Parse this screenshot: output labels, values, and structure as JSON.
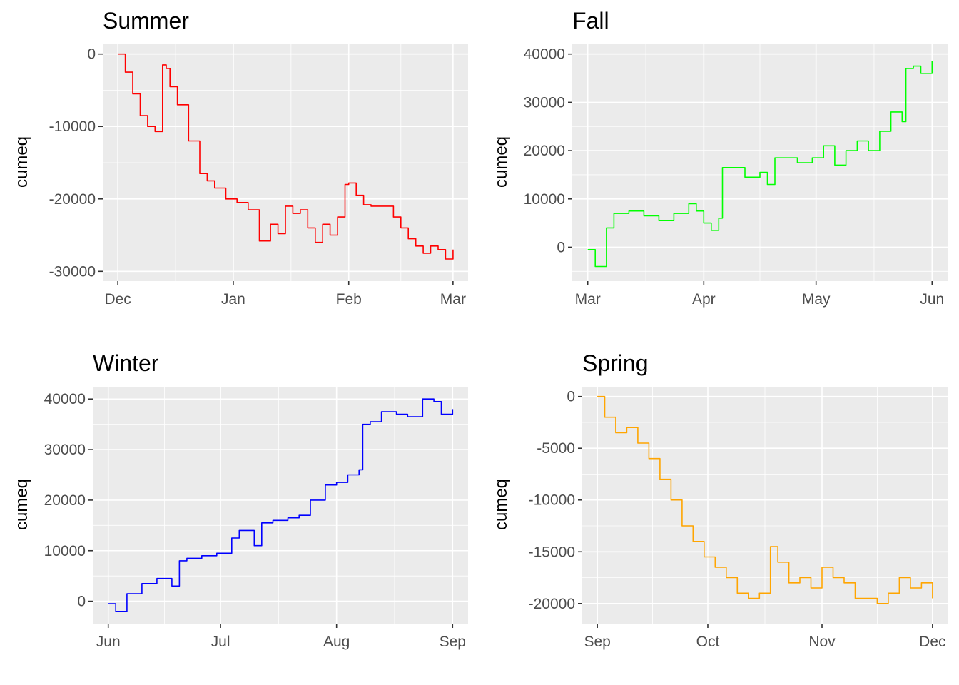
{
  "chart_data": [
    {
      "type": "line",
      "title": "Summer",
      "xlabel": "",
      "ylabel": "cumeq",
      "x_ticks": [
        "Dec",
        "Jan",
        "Feb",
        "Mar"
      ],
      "y_ticks": [
        0,
        -10000,
        -20000,
        -30000
      ],
      "y_tick_labels": [
        "0",
        "-10000",
        "-20000",
        "-30000"
      ],
      "xlim": [
        "2020-12-01",
        "2021-03-01"
      ],
      "ylim": [
        -30000,
        0
      ],
      "grid": true,
      "series": [
        {
          "color": "#ff0000",
          "x": [
            "2020-12-01",
            "2020-12-03",
            "2020-12-05",
            "2020-12-07",
            "2020-12-09",
            "2020-12-11",
            "2020-12-13",
            "2020-12-14",
            "2020-12-15",
            "2020-12-17",
            "2020-12-20",
            "2020-12-23",
            "2020-12-25",
            "2020-12-27",
            "2020-12-30",
            "2021-01-02",
            "2021-01-05",
            "2021-01-08",
            "2021-01-11",
            "2021-01-13",
            "2021-01-15",
            "2021-01-17",
            "2021-01-19",
            "2021-01-21",
            "2021-01-23",
            "2021-01-25",
            "2021-01-27",
            "2021-01-29",
            "2021-01-31",
            "2021-02-01",
            "2021-02-03",
            "2021-02-05",
            "2021-02-07",
            "2021-02-10",
            "2021-02-13",
            "2021-02-15",
            "2021-02-17",
            "2021-02-19",
            "2021-02-21",
            "2021-02-23",
            "2021-02-25",
            "2021-02-27",
            "2021-03-01"
          ],
          "values": [
            0,
            -2500,
            -5500,
            -8500,
            -10000,
            -10700,
            -1500,
            -2000,
            -4500,
            -7000,
            -12000,
            -16500,
            -17500,
            -18500,
            -20000,
            -20500,
            -21500,
            -25800,
            -23500,
            -24800,
            -21000,
            -22000,
            -21500,
            -24000,
            -26000,
            -23500,
            -25000,
            -22500,
            -18000,
            -17800,
            -19500,
            -20800,
            -21000,
            -21000,
            -22500,
            -24000,
            -25500,
            -26500,
            -27500,
            -26500,
            -27000,
            -28300,
            -27000
          ]
        }
      ]
    },
    {
      "type": "line",
      "title": "Fall",
      "xlabel": "",
      "ylabel": "cumeq",
      "x_ticks": [
        "Mar",
        "Apr",
        "May",
        "Jun"
      ],
      "y_ticks": [
        40000,
        30000,
        20000,
        10000,
        0
      ],
      "y_tick_labels": [
        "40000",
        "30000",
        "20000",
        "10000",
        "0"
      ],
      "xlim": [
        "2021-03-01",
        "2021-06-01"
      ],
      "ylim": [
        -5000,
        40000
      ],
      "grid": true,
      "series": [
        {
          "color": "#00ff00",
          "x": [
            "2021-03-01",
            "2021-03-03",
            "2021-03-05",
            "2021-03-06",
            "2021-03-08",
            "2021-03-12",
            "2021-03-16",
            "2021-03-20",
            "2021-03-24",
            "2021-03-28",
            "2021-03-30",
            "2021-04-01",
            "2021-04-03",
            "2021-04-05",
            "2021-04-06",
            "2021-04-08",
            "2021-04-12",
            "2021-04-16",
            "2021-04-18",
            "2021-04-20",
            "2021-04-23",
            "2021-04-26",
            "2021-04-30",
            "2021-05-03",
            "2021-05-06",
            "2021-05-09",
            "2021-05-12",
            "2021-05-15",
            "2021-05-18",
            "2021-05-21",
            "2021-05-24",
            "2021-05-25",
            "2021-05-27",
            "2021-05-29",
            "2021-06-01"
          ],
          "values": [
            -500,
            -4000,
            -4000,
            4000,
            7000,
            7500,
            6500,
            5500,
            7000,
            9000,
            7500,
            5000,
            3500,
            6000,
            16500,
            16500,
            14500,
            15500,
            13000,
            18500,
            18500,
            17500,
            18500,
            21000,
            17000,
            20000,
            22000,
            20000,
            24000,
            28000,
            26000,
            37000,
            37500,
            36000,
            38500
          ]
        }
      ]
    },
    {
      "type": "line",
      "title": "Winter",
      "xlabel": "",
      "ylabel": "cumeq",
      "x_ticks": [
        "Jun",
        "Jul",
        "Aug",
        "Sep"
      ],
      "y_ticks": [
        40000,
        30000,
        20000,
        10000,
        0
      ],
      "y_tick_labels": [
        "40000",
        "30000",
        "20000",
        "10000",
        "0"
      ],
      "xlim": [
        "2021-06-01",
        "2021-09-01"
      ],
      "ylim": [
        -2500,
        40500
      ],
      "grid": true,
      "series": [
        {
          "color": "#0000ff",
          "x": [
            "2021-06-01",
            "2021-06-03",
            "2021-06-06",
            "2021-06-10",
            "2021-06-14",
            "2021-06-18",
            "2021-06-20",
            "2021-06-22",
            "2021-06-26",
            "2021-06-30",
            "2021-07-04",
            "2021-07-06",
            "2021-07-10",
            "2021-07-12",
            "2021-07-15",
            "2021-07-19",
            "2021-07-22",
            "2021-07-25",
            "2021-07-29",
            "2021-08-01",
            "2021-08-04",
            "2021-08-07",
            "2021-08-08",
            "2021-08-10",
            "2021-08-13",
            "2021-08-17",
            "2021-08-20",
            "2021-08-24",
            "2021-08-27",
            "2021-08-29",
            "2021-09-01"
          ],
          "values": [
            -500,
            -2000,
            1500,
            3500,
            4500,
            3000,
            8000,
            8500,
            9000,
            9500,
            12500,
            14000,
            11000,
            15500,
            16000,
            16500,
            17000,
            20000,
            23000,
            23500,
            25000,
            26000,
            35000,
            35500,
            37500,
            37000,
            36500,
            40000,
            39500,
            37000,
            38000
          ]
        }
      ]
    },
    {
      "type": "line",
      "title": "Spring",
      "xlabel": "",
      "ylabel": "cumeq",
      "x_ticks": [
        "Sep",
        "Oct",
        "Nov",
        "Dec"
      ],
      "y_ticks": [
        0,
        -5000,
        -10000,
        -15000,
        -20000
      ],
      "y_tick_labels": [
        "0",
        "-5000",
        "-10000",
        "-15000",
        "-20000"
      ],
      "xlim": [
        "2021-09-01",
        "2021-12-01"
      ],
      "ylim": [
        -21000,
        0
      ],
      "grid": true,
      "series": [
        {
          "color": "#ffa500",
          "x": [
            "2021-09-01",
            "2021-09-03",
            "2021-09-06",
            "2021-09-09",
            "2021-09-12",
            "2021-09-15",
            "2021-09-18",
            "2021-09-21",
            "2021-09-24",
            "2021-09-27",
            "2021-09-30",
            "2021-10-03",
            "2021-10-06",
            "2021-10-09",
            "2021-10-12",
            "2021-10-15",
            "2021-10-18",
            "2021-10-20",
            "2021-10-23",
            "2021-10-26",
            "2021-10-29",
            "2021-11-01",
            "2021-11-04",
            "2021-11-07",
            "2021-11-10",
            "2021-11-13",
            "2021-11-16",
            "2021-11-19",
            "2021-11-22",
            "2021-11-25",
            "2021-11-28",
            "2021-12-01"
          ],
          "values": [
            0,
            -2000,
            -3500,
            -3000,
            -4500,
            -6000,
            -8000,
            -10000,
            -12500,
            -14000,
            -15500,
            -16500,
            -17500,
            -19000,
            -19500,
            -19000,
            -14500,
            -16000,
            -18000,
            -17500,
            -18500,
            -16500,
            -17500,
            -18000,
            -19500,
            -19500,
            -20000,
            -19000,
            -17500,
            -18500,
            -18000,
            -19500
          ]
        }
      ]
    }
  ]
}
